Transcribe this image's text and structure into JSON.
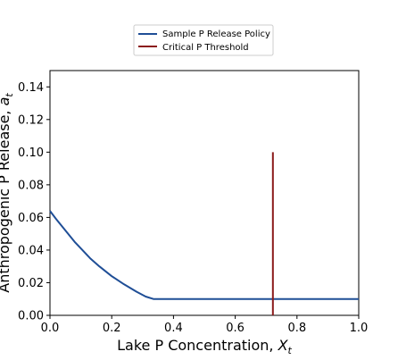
{
  "chart_data": {
    "type": "line",
    "title": "",
    "xlabel": "Lake P Concentration, ",
    "xlabel_symbol": "X",
    "xlabel_sub": "t",
    "ylabel": "Anthropogenic P Release, ",
    "ylabel_symbol": "a",
    "ylabel_sub": "t",
    "xlim": [
      0.0,
      1.0
    ],
    "ylim": [
      0.0,
      0.15
    ],
    "xticks": [
      "0.0",
      "0.2",
      "0.4",
      "0.6",
      "0.8",
      "1.0"
    ],
    "yticks": [
      "0.00",
      "0.02",
      "0.04",
      "0.06",
      "0.08",
      "0.10",
      "0.12",
      "0.14"
    ],
    "grid": false,
    "legend_position": "top-center, above plot",
    "series": [
      {
        "name": "Sample P Release Policy",
        "color": "#1f4e96",
        "x": [
          0.0,
          0.02,
          0.05,
          0.08,
          0.1,
          0.13,
          0.16,
          0.2,
          0.24,
          0.28,
          0.31,
          0.335,
          0.4,
          0.5,
          0.6,
          0.7,
          0.8,
          0.9,
          1.0
        ],
        "y": [
          0.064,
          0.059,
          0.052,
          0.045,
          0.041,
          0.035,
          0.03,
          0.024,
          0.019,
          0.0145,
          0.0115,
          0.01,
          0.01,
          0.01,
          0.01,
          0.01,
          0.01,
          0.01,
          0.01
        ]
      },
      {
        "name": "Critical P Threshold",
        "color": "#8b1a1a",
        "x": [
          0.722,
          0.722
        ],
        "y": [
          0.0,
          0.1
        ]
      }
    ]
  }
}
